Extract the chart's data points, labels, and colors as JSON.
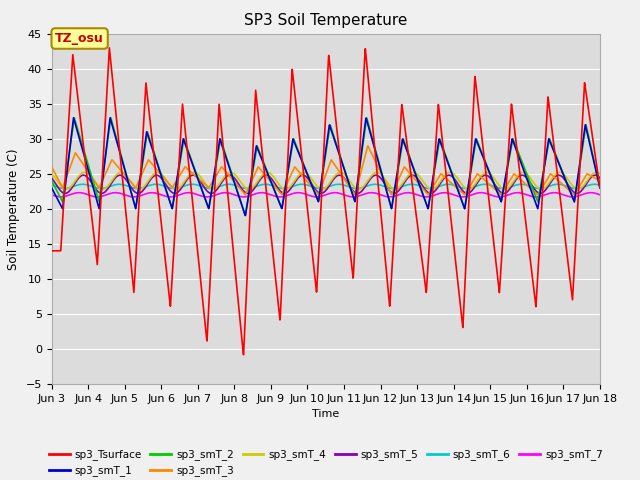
{
  "title": "SP3 Soil Temperature",
  "ylabel": "Soil Temperature (C)",
  "xlabel": "Time",
  "xlim_days": [
    3,
    18
  ],
  "ylim": [
    -5,
    45
  ],
  "yticks": [
    -5,
    0,
    5,
    10,
    15,
    20,
    25,
    30,
    35,
    40,
    45
  ],
  "xtick_labels": [
    "Jun 3",
    "Jun 4",
    "Jun 5",
    "Jun 6",
    "Jun 7",
    "Jun 8",
    "Jun 9",
    "Jun 10",
    "Jun 11",
    "Jun 12",
    "Jun 13",
    "Jun 14",
    "Jun 15",
    "Jun 16",
    "Jun 17",
    "Jun 18"
  ],
  "annotation_text": "TZ_osu",
  "annotation_color": "#cc0000",
  "annotation_bg": "#ffff99",
  "annotation_border": "#aa8800",
  "colors": {
    "sp3_Tsurface": "#ff0000",
    "sp3_smT_1": "#0000cc",
    "sp3_smT_2": "#00cc00",
    "sp3_smT_3": "#ff8800",
    "sp3_smT_4": "#cccc00",
    "sp3_smT_5": "#8800aa",
    "sp3_smT_6": "#00cccc",
    "sp3_smT_7": "#ff00ff"
  },
  "bg_color": "#dcdcdc",
  "fig_color": "#f0f0f0"
}
